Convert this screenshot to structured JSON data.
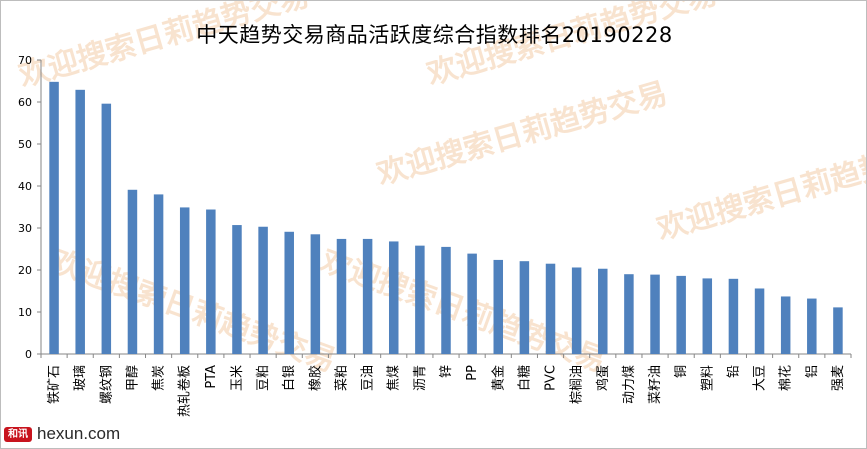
{
  "watermark": {
    "text": "欢迎搜索日莉趋势交易",
    "color": "#f4cda9"
  },
  "logo": {
    "badge": "和讯",
    "text": "hexun.com",
    "brand_color": "#c8141e"
  },
  "chart_data": {
    "type": "bar",
    "title": "中天趋势交易商品活跃度综合指数排名20190228",
    "xlabel": "",
    "ylabel": "",
    "ylim": [
      0,
      70
    ],
    "yticks": [
      0,
      10,
      20,
      30,
      40,
      50,
      60,
      70
    ],
    "grid": false,
    "legend": "none",
    "bar_color": "#4f81bd",
    "categories": [
      "铁矿石",
      "玻璃",
      "螺纹钢",
      "甲醇",
      "焦炭",
      "热轧卷板",
      "PTA",
      "玉米",
      "豆粕",
      "白银",
      "橡胶",
      "菜粕",
      "豆油",
      "焦煤",
      "沥青",
      "锌",
      "PP",
      "黄金",
      "白糖",
      "PVC",
      "棕榈油",
      "鸡蛋",
      "动力煤",
      "菜籽油",
      "铜",
      "塑料",
      "铅",
      "大豆",
      "棉花",
      "铝",
      "强麦"
    ],
    "values": [
      64.8,
      62.9,
      59.6,
      39.1,
      38.0,
      34.9,
      34.4,
      30.7,
      30.3,
      29.1,
      28.5,
      27.4,
      27.4,
      26.8,
      25.8,
      25.5,
      23.9,
      22.4,
      22.1,
      21.5,
      20.6,
      20.3,
      19.0,
      18.9,
      18.6,
      18.0,
      17.9,
      15.6,
      13.7,
      13.2,
      11.1
    ]
  }
}
